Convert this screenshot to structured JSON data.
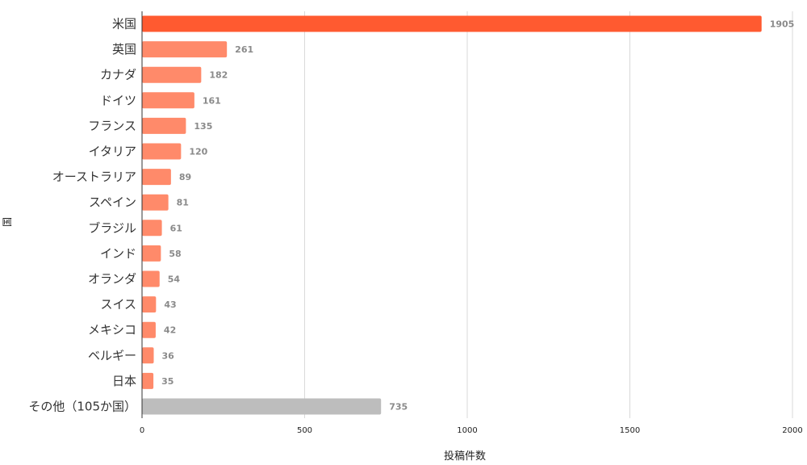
{
  "chart_data": {
    "type": "bar",
    "orientation": "horizontal",
    "categories": [
      "米国",
      "英国",
      "カナダ",
      "ドイツ",
      "フランス",
      "イタリア",
      "オーストラリア",
      "スペイン",
      "ブラジル",
      "インド",
      "オランダ",
      "スイス",
      "メキシコ",
      "ベルギー",
      "日本",
      "その他（105か国）"
    ],
    "values": [
      1905,
      261,
      182,
      161,
      135,
      120,
      89,
      81,
      61,
      58,
      54,
      43,
      42,
      36,
      35,
      735
    ],
    "bar_colors": [
      "#ff5a30",
      "#ff8a6a",
      "#ff8a6a",
      "#ff8a6a",
      "#ff8a6a",
      "#ff8a6a",
      "#ff8a6a",
      "#ff8a6a",
      "#ff8a6a",
      "#ff8a6a",
      "#ff8a6a",
      "#ff8a6a",
      "#ff8a6a",
      "#ff8a6a",
      "#ff8a6a",
      "#bdbdbd"
    ],
    "title": "",
    "xlabel": "投稿件数",
    "ylabel": "国",
    "xlim": [
      0,
      2000
    ],
    "xticks": [
      0,
      500,
      1000,
      1500,
      2000
    ],
    "grid": "vertical",
    "legend": "none",
    "data_labels": true
  }
}
